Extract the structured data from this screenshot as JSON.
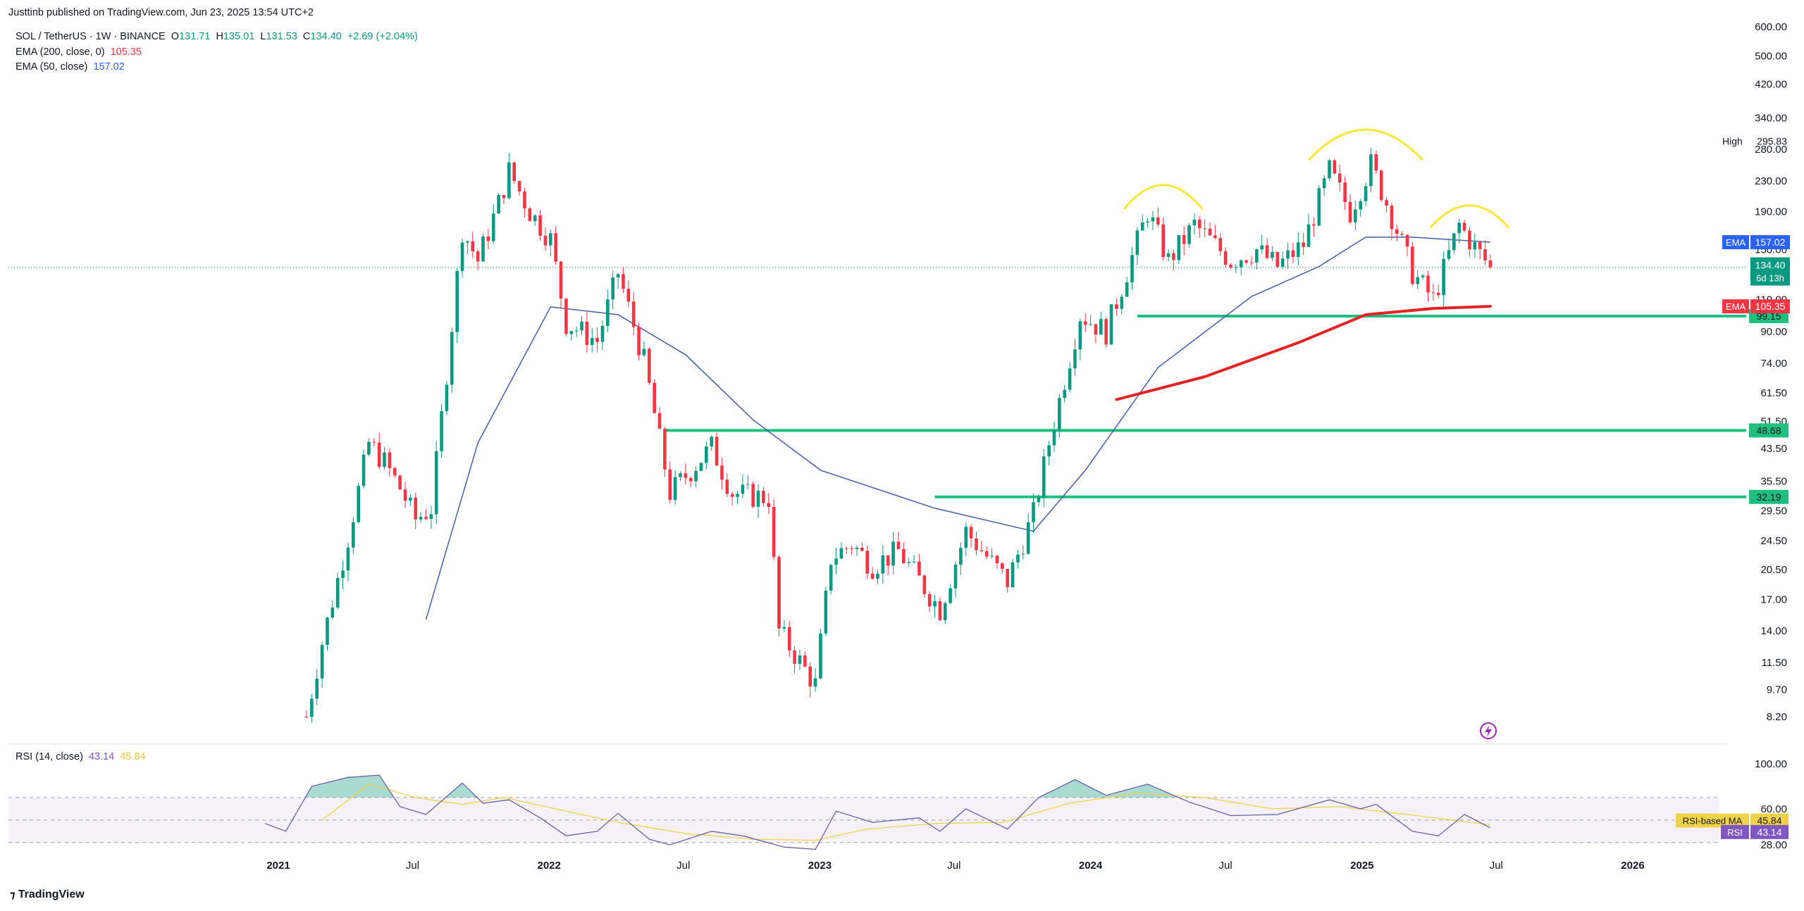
{
  "header": {
    "published": "Justtinb published on TradingView.com, Jun 23, 2025 13:54 UTC+2",
    "symbol": "SOL / TetherUS · 1W · BINANCE",
    "ohlc": {
      "o_label": "O",
      "o": "131.71",
      "h_label": "H",
      "h": "135.01",
      "l_label": "L",
      "l": "131.53",
      "c_label": "C",
      "c": "134.40",
      "change": "+2.69 (+2.04%)"
    },
    "ema200_label": "EMA (200, close, 0)",
    "ema200_value": "105.35",
    "ema50_label": "EMA (50, close)",
    "ema50_value": "157.02",
    "rsi_label": "RSI (14, close)",
    "rsi_value": "43.14",
    "rsi_ma_value": "45.84"
  },
  "footer": {
    "brand": "TradingView",
    "logo": "tradingview-logo-icon"
  },
  "colors": {
    "up": "#089981",
    "down": "#f23645",
    "ema50": "#4a5aa8",
    "ema200": "#e32323",
    "support": "#1fbf7f",
    "annotation": "#f5e83a",
    "rsi": "#6b5fa8",
    "rsi_ma": "#f0d24a"
  },
  "chart_data": [
    {
      "type": "candlestick",
      "title": "",
      "scale": "log",
      "ylim": [
        7.0,
        640
      ],
      "xlim": [
        "2020-08-10",
        "2026-06-01"
      ],
      "x_ticks": [
        "2021",
        "Jul",
        "2022",
        "Jul",
        "2023",
        "Jul",
        "2024",
        "Jul",
        "2025",
        "Jul",
        "2026"
      ],
      "x_tick_dates": [
        "2021-01-01",
        "2021-07-01",
        "2022-01-01",
        "2022-07-01",
        "2023-01-01",
        "2023-07-01",
        "2024-01-01",
        "2024-07-01",
        "2025-01-01",
        "2025-07-01",
        "2026-01-01"
      ],
      "y_ticks": [
        "600.00",
        "500.00",
        "420.00",
        "340.00",
        "280.00",
        "230.00",
        "190.00",
        "150.00",
        "110.00",
        "90.00",
        "74.00",
        "61.50",
        "51.50",
        "43.50",
        "35.50",
        "29.50",
        "24.50",
        "20.50",
        "17.00",
        "14.00",
        "11.50",
        "9.70",
        "8.20"
      ],
      "y_tick_values": [
        600,
        500,
        420,
        340,
        280,
        230,
        190,
        150,
        110,
        90,
        74,
        61.5,
        51.5,
        43.5,
        35.5,
        29.5,
        24.5,
        20.5,
        17,
        14,
        11.5,
        9.7,
        8.2
      ],
      "price_path": [
        [
          "2021-02-08",
          8.2
        ],
        [
          "2021-03-01",
          13
        ],
        [
          "2021-04-05",
          25
        ],
        [
          "2021-05-03",
          45
        ],
        [
          "2021-05-24",
          40
        ],
        [
          "2021-06-14",
          34
        ],
        [
          "2021-07-05",
          28
        ],
        [
          "2021-07-26",
          30
        ],
        [
          "2021-08-16",
          70
        ],
        [
          "2021-09-06",
          170
        ],
        [
          "2021-09-27",
          140
        ],
        [
          "2021-10-25",
          200
        ],
        [
          "2021-11-08",
          245
        ],
        [
          "2021-12-06",
          190
        ],
        [
          "2022-01-03",
          160
        ],
        [
          "2022-01-24",
          95
        ],
        [
          "2022-03-07",
          85
        ],
        [
          "2022-04-04",
          130
        ],
        [
          "2022-05-09",
          75
        ],
        [
          "2022-06-13",
          33
        ],
        [
          "2022-07-11",
          38
        ],
        [
          "2022-08-08",
          44
        ],
        [
          "2022-09-05",
          33
        ],
        [
          "2022-10-24",
          32
        ],
        [
          "2022-11-07",
          14
        ],
        [
          "2022-12-26",
          10
        ],
        [
          "2023-01-16",
          22
        ],
        [
          "2023-02-13",
          24
        ],
        [
          "2023-03-13",
          21
        ],
        [
          "2023-04-17",
          23
        ],
        [
          "2023-06-12",
          16
        ],
        [
          "2023-07-17",
          26
        ],
        [
          "2023-09-11",
          19
        ],
        [
          "2023-10-16",
          29
        ],
        [
          "2023-11-06",
          45
        ],
        [
          "2023-12-18",
          100
        ],
        [
          "2024-01-22",
          90
        ],
        [
          "2024-03-18",
          190
        ],
        [
          "2024-04-15",
          140
        ],
        [
          "2024-05-20",
          175
        ],
        [
          "2024-07-08",
          140
        ],
        [
          "2024-08-12",
          150
        ],
        [
          "2024-09-09",
          135
        ],
        [
          "2024-10-14",
          155
        ],
        [
          "2024-11-18",
          245
        ],
        [
          "2024-12-16",
          190
        ],
        [
          "2025-01-13",
          255
        ],
        [
          "2025-02-10",
          185
        ],
        [
          "2025-03-10",
          130
        ],
        [
          "2025-04-07",
          110
        ],
        [
          "2025-05-12",
          175
        ],
        [
          "2025-06-02",
          152
        ],
        [
          "2025-06-23",
          134.4
        ]
      ],
      "ema50_path": [
        [
          "2021-07-19",
          15
        ],
        [
          "2021-09-27",
          45
        ],
        [
          "2022-01-03",
          105
        ],
        [
          "2022-04-04",
          100
        ],
        [
          "2022-07-04",
          78
        ],
        [
          "2022-10-03",
          52
        ],
        [
          "2023-01-02",
          38
        ],
        [
          "2023-06-05",
          30
        ],
        [
          "2023-10-16",
          26
        ],
        [
          "2023-12-25",
          38
        ],
        [
          "2024-04-01",
          72
        ],
        [
          "2024-08-05",
          112
        ],
        [
          "2024-11-04",
          135
        ],
        [
          "2025-01-06",
          162
        ],
        [
          "2025-03-10",
          162
        ],
        [
          "2025-06-23",
          157.02
        ]
      ],
      "ema200_path": [
        [
          "2024-02-05",
          59
        ],
        [
          "2024-06-03",
          68
        ],
        [
          "2024-10-07",
          84
        ],
        [
          "2025-01-06",
          100
        ],
        [
          "2025-04-07",
          104
        ],
        [
          "2025-06-23",
          105.35
        ]
      ],
      "horizontal_levels": [
        {
          "value": 99.15,
          "label": "99.15",
          "from": "2024-03-04"
        },
        {
          "value": 48.68,
          "label": "48.68",
          "from": "2022-06-06"
        },
        {
          "value": 32.19,
          "label": "32.19",
          "from": "2023-06-05"
        }
      ],
      "last_price": {
        "value": 134.4,
        "label": "134.40",
        "countdown": "6d 13h"
      },
      "high_marker": {
        "label": "High",
        "value": "295.83"
      },
      "ema_badges": [
        {
          "name": "EMA",
          "value": "157.02",
          "color": "#2962ff"
        },
        {
          "name": "EMA",
          "value": "105.35",
          "color": "#f23645"
        }
      ],
      "annotations": [
        {
          "kind": "arc",
          "center": "2024-04-08",
          "value": 215
        },
        {
          "kind": "arc",
          "center": "2025-01-06",
          "value": 300
        },
        {
          "kind": "arc",
          "center": "2025-05-26",
          "value": 190
        }
      ]
    },
    {
      "type": "line",
      "title": "",
      "ylim": [
        28,
        100
      ],
      "y_ticks": [
        "100.00",
        "60.00",
        "28.00"
      ],
      "y_tick_values": [
        100,
        60,
        28
      ],
      "bands": [
        70,
        50,
        30
      ],
      "rsi_path": [
        [
          "2020-12-14",
          47
        ],
        [
          "2021-01-11",
          40
        ],
        [
          "2021-02-15",
          80
        ],
        [
          "2021-04-05",
          88
        ],
        [
          "2021-05-17",
          90
        ],
        [
          "2021-06-14",
          62
        ],
        [
          "2021-07-19",
          55
        ],
        [
          "2021-09-06",
          83
        ],
        [
          "2021-10-04",
          65
        ],
        [
          "2021-11-08",
          68
        ],
        [
          "2021-12-20",
          52
        ],
        [
          "2022-01-24",
          36
        ],
        [
          "2022-03-07",
          40
        ],
        [
          "2022-04-04",
          56
        ],
        [
          "2022-05-16",
          33
        ],
        [
          "2022-06-13",
          28
        ],
        [
          "2022-08-08",
          40
        ],
        [
          "2022-09-19",
          36
        ],
        [
          "2022-11-14",
          26
        ],
        [
          "2022-12-26",
          24
        ],
        [
          "2023-01-23",
          58
        ],
        [
          "2023-03-13",
          48
        ],
        [
          "2023-05-15",
          52
        ],
        [
          "2023-06-12",
          40
        ],
        [
          "2023-07-17",
          60
        ],
        [
          "2023-09-11",
          42
        ],
        [
          "2023-10-23",
          70
        ],
        [
          "2023-12-11",
          86
        ],
        [
          "2024-01-22",
          72
        ],
        [
          "2024-03-18",
          82
        ],
        [
          "2024-05-13",
          66
        ],
        [
          "2024-07-08",
          54
        ],
        [
          "2024-09-09",
          55
        ],
        [
          "2024-11-18",
          68
        ],
        [
          "2024-12-30",
          60
        ],
        [
          "2025-01-20",
          64
        ],
        [
          "2025-03-10",
          40
        ],
        [
          "2025-04-14",
          36
        ],
        [
          "2025-05-19",
          55
        ],
        [
          "2025-06-23",
          43.14
        ]
      ],
      "rsi_ma_path": [
        [
          "2021-03-01",
          50
        ],
        [
          "2021-05-03",
          82
        ],
        [
          "2021-07-05",
          70
        ],
        [
          "2021-09-06",
          64
        ],
        [
          "2021-11-01",
          70
        ],
        [
          "2022-01-10",
          60
        ],
        [
          "2022-04-04",
          48
        ],
        [
          "2022-07-04",
          38
        ],
        [
          "2022-10-03",
          33
        ],
        [
          "2022-12-26",
          32
        ],
        [
          "2023-03-06",
          42
        ],
        [
          "2023-06-05",
          47
        ],
        [
          "2023-09-04",
          48
        ],
        [
          "2023-12-04",
          65
        ],
        [
          "2024-03-04",
          74
        ],
        [
          "2024-06-03",
          70
        ],
        [
          "2024-09-02",
          60
        ],
        [
          "2024-12-02",
          62
        ],
        [
          "2025-03-03",
          55
        ],
        [
          "2025-06-23",
          45.84
        ]
      ],
      "badges": [
        {
          "label": "RSI-based MA",
          "value": "45.84",
          "color": "#f0d24a"
        },
        {
          "label": "RSI",
          "value": "43.14",
          "color": "#7e57c2"
        }
      ]
    }
  ]
}
